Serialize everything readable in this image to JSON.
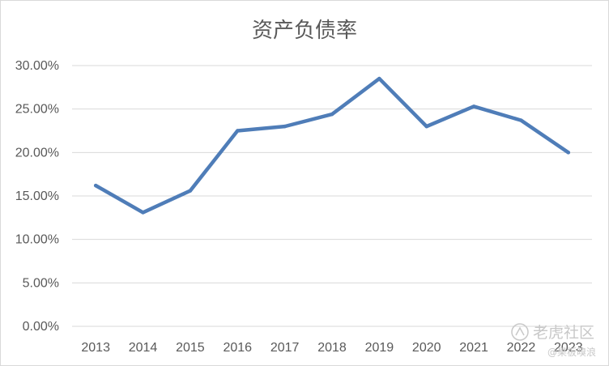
{
  "chart_data": {
    "type": "line",
    "title": "资产负债率",
    "xlabel": "",
    "ylabel": "",
    "categories": [
      "2013",
      "2014",
      "2015",
      "2016",
      "2017",
      "2018",
      "2019",
      "2020",
      "2021",
      "2022",
      "2023"
    ],
    "series": [
      {
        "values": [
          16.2,
          13.1,
          15.6,
          22.5,
          23.0,
          24.4,
          28.5,
          23.0,
          25.3,
          23.7,
          20.0
        ],
        "color": "#4f7db8"
      }
    ],
    "ylim": [
      0,
      30
    ],
    "yticks": [
      0,
      5,
      10,
      15,
      20,
      25,
      30
    ],
    "ytick_labels": [
      "0.00%",
      "5.00%",
      "10.00%",
      "15.00%",
      "20.00%",
      "25.00%",
      "30.00%"
    ],
    "grid": true,
    "legend": "none"
  },
  "watermark": {
    "brand": "老虎社区",
    "user": "@果板嗅浪"
  },
  "colors": {
    "line": "#4f7db8",
    "grid": "#d9d9d9",
    "text": "#595959"
  }
}
